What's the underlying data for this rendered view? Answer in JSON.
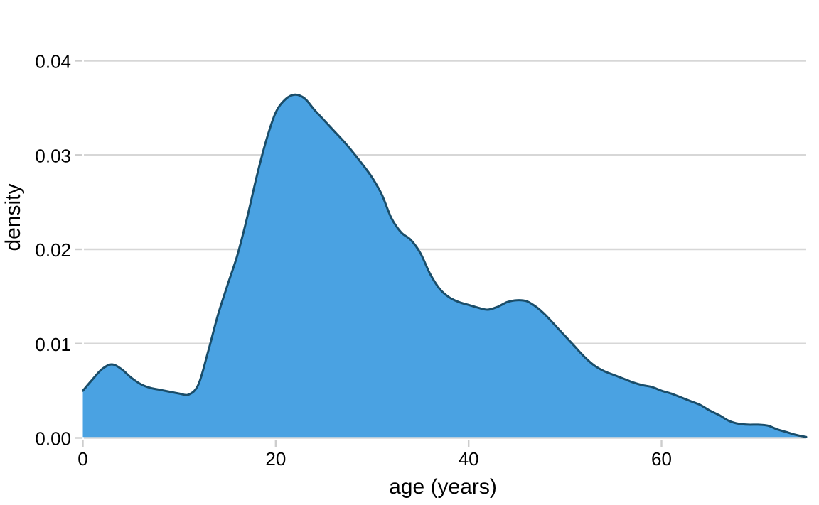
{
  "chart_data": {
    "type": "area",
    "subtype": "kernel-density-estimate",
    "title": "",
    "xlabel": "age (years)",
    "ylabel": "density",
    "xlim": [
      0,
      75
    ],
    "ylim": [
      0,
      0.04
    ],
    "xticks": [
      0,
      20,
      40,
      60
    ],
    "xtick_labels": [
      "0",
      "20",
      "40",
      "60"
    ],
    "yticks": [
      0,
      0.01,
      0.02,
      0.03,
      0.04
    ],
    "ytick_labels": [
      "0.00",
      "0.01",
      "0.02",
      "0.03",
      "0.04"
    ],
    "grid": "horizontal gridlines at each y tick, drawn behind the area",
    "legend": "none",
    "x": [
      0,
      1,
      2,
      3,
      4,
      5,
      6,
      7,
      8,
      9,
      10,
      11,
      12,
      13,
      14,
      15,
      16,
      17,
      18,
      19,
      20,
      21,
      22,
      23,
      24,
      25,
      26,
      27,
      28,
      29,
      30,
      31,
      32,
      33,
      34,
      35,
      36,
      37,
      38,
      39,
      40,
      41,
      42,
      43,
      44,
      45,
      46,
      47,
      48,
      49,
      50,
      51,
      52,
      53,
      54,
      55,
      56,
      57,
      58,
      59,
      60,
      61,
      62,
      63,
      64,
      65,
      66,
      67,
      68,
      69,
      70,
      71,
      72,
      73,
      74,
      75
    ],
    "y": [
      0.005,
      0.0062,
      0.0073,
      0.0078,
      0.0073,
      0.0064,
      0.0057,
      0.0053,
      0.0051,
      0.0049,
      0.0047,
      0.0046,
      0.0057,
      0.0092,
      0.013,
      0.0162,
      0.0193,
      0.0232,
      0.0276,
      0.0315,
      0.0345,
      0.0359,
      0.0364,
      0.036,
      0.0348,
      0.0337,
      0.0326,
      0.0315,
      0.0303,
      0.029,
      0.0276,
      0.0258,
      0.0233,
      0.0218,
      0.021,
      0.0196,
      0.0174,
      0.0158,
      0.0149,
      0.0144,
      0.0141,
      0.0138,
      0.0136,
      0.0139,
      0.0144,
      0.0146,
      0.0145,
      0.0139,
      0.013,
      0.0119,
      0.0108,
      0.0097,
      0.0086,
      0.0077,
      0.0071,
      0.0067,
      0.0063,
      0.0059,
      0.0056,
      0.0054,
      0.005,
      0.0047,
      0.0043,
      0.0039,
      0.0035,
      0.0029,
      0.0024,
      0.0018,
      0.0015,
      0.0014,
      0.0014,
      0.0013,
      0.0009,
      0.0006,
      0.0003,
      0.0001
    ],
    "annotations": {
      "start_density_at_age_0": 0.005,
      "local_peak_age_3": 0.0078,
      "local_min_age_11": 0.0046,
      "main_peak_age_22": 0.0364,
      "shoulder_age_33": 0.0218,
      "local_min_age_42": 0.0136,
      "secondary_bump_age_45": 0.0146,
      "tail_plateau_age_69": 0.0014
    },
    "colors": {
      "fill": "#4AA2E2",
      "line": "#1A4D69",
      "gridline": "#D7D7D7",
      "tick": "#CDCDCD",
      "text": "#000000",
      "background": "#FFFFFF"
    }
  }
}
